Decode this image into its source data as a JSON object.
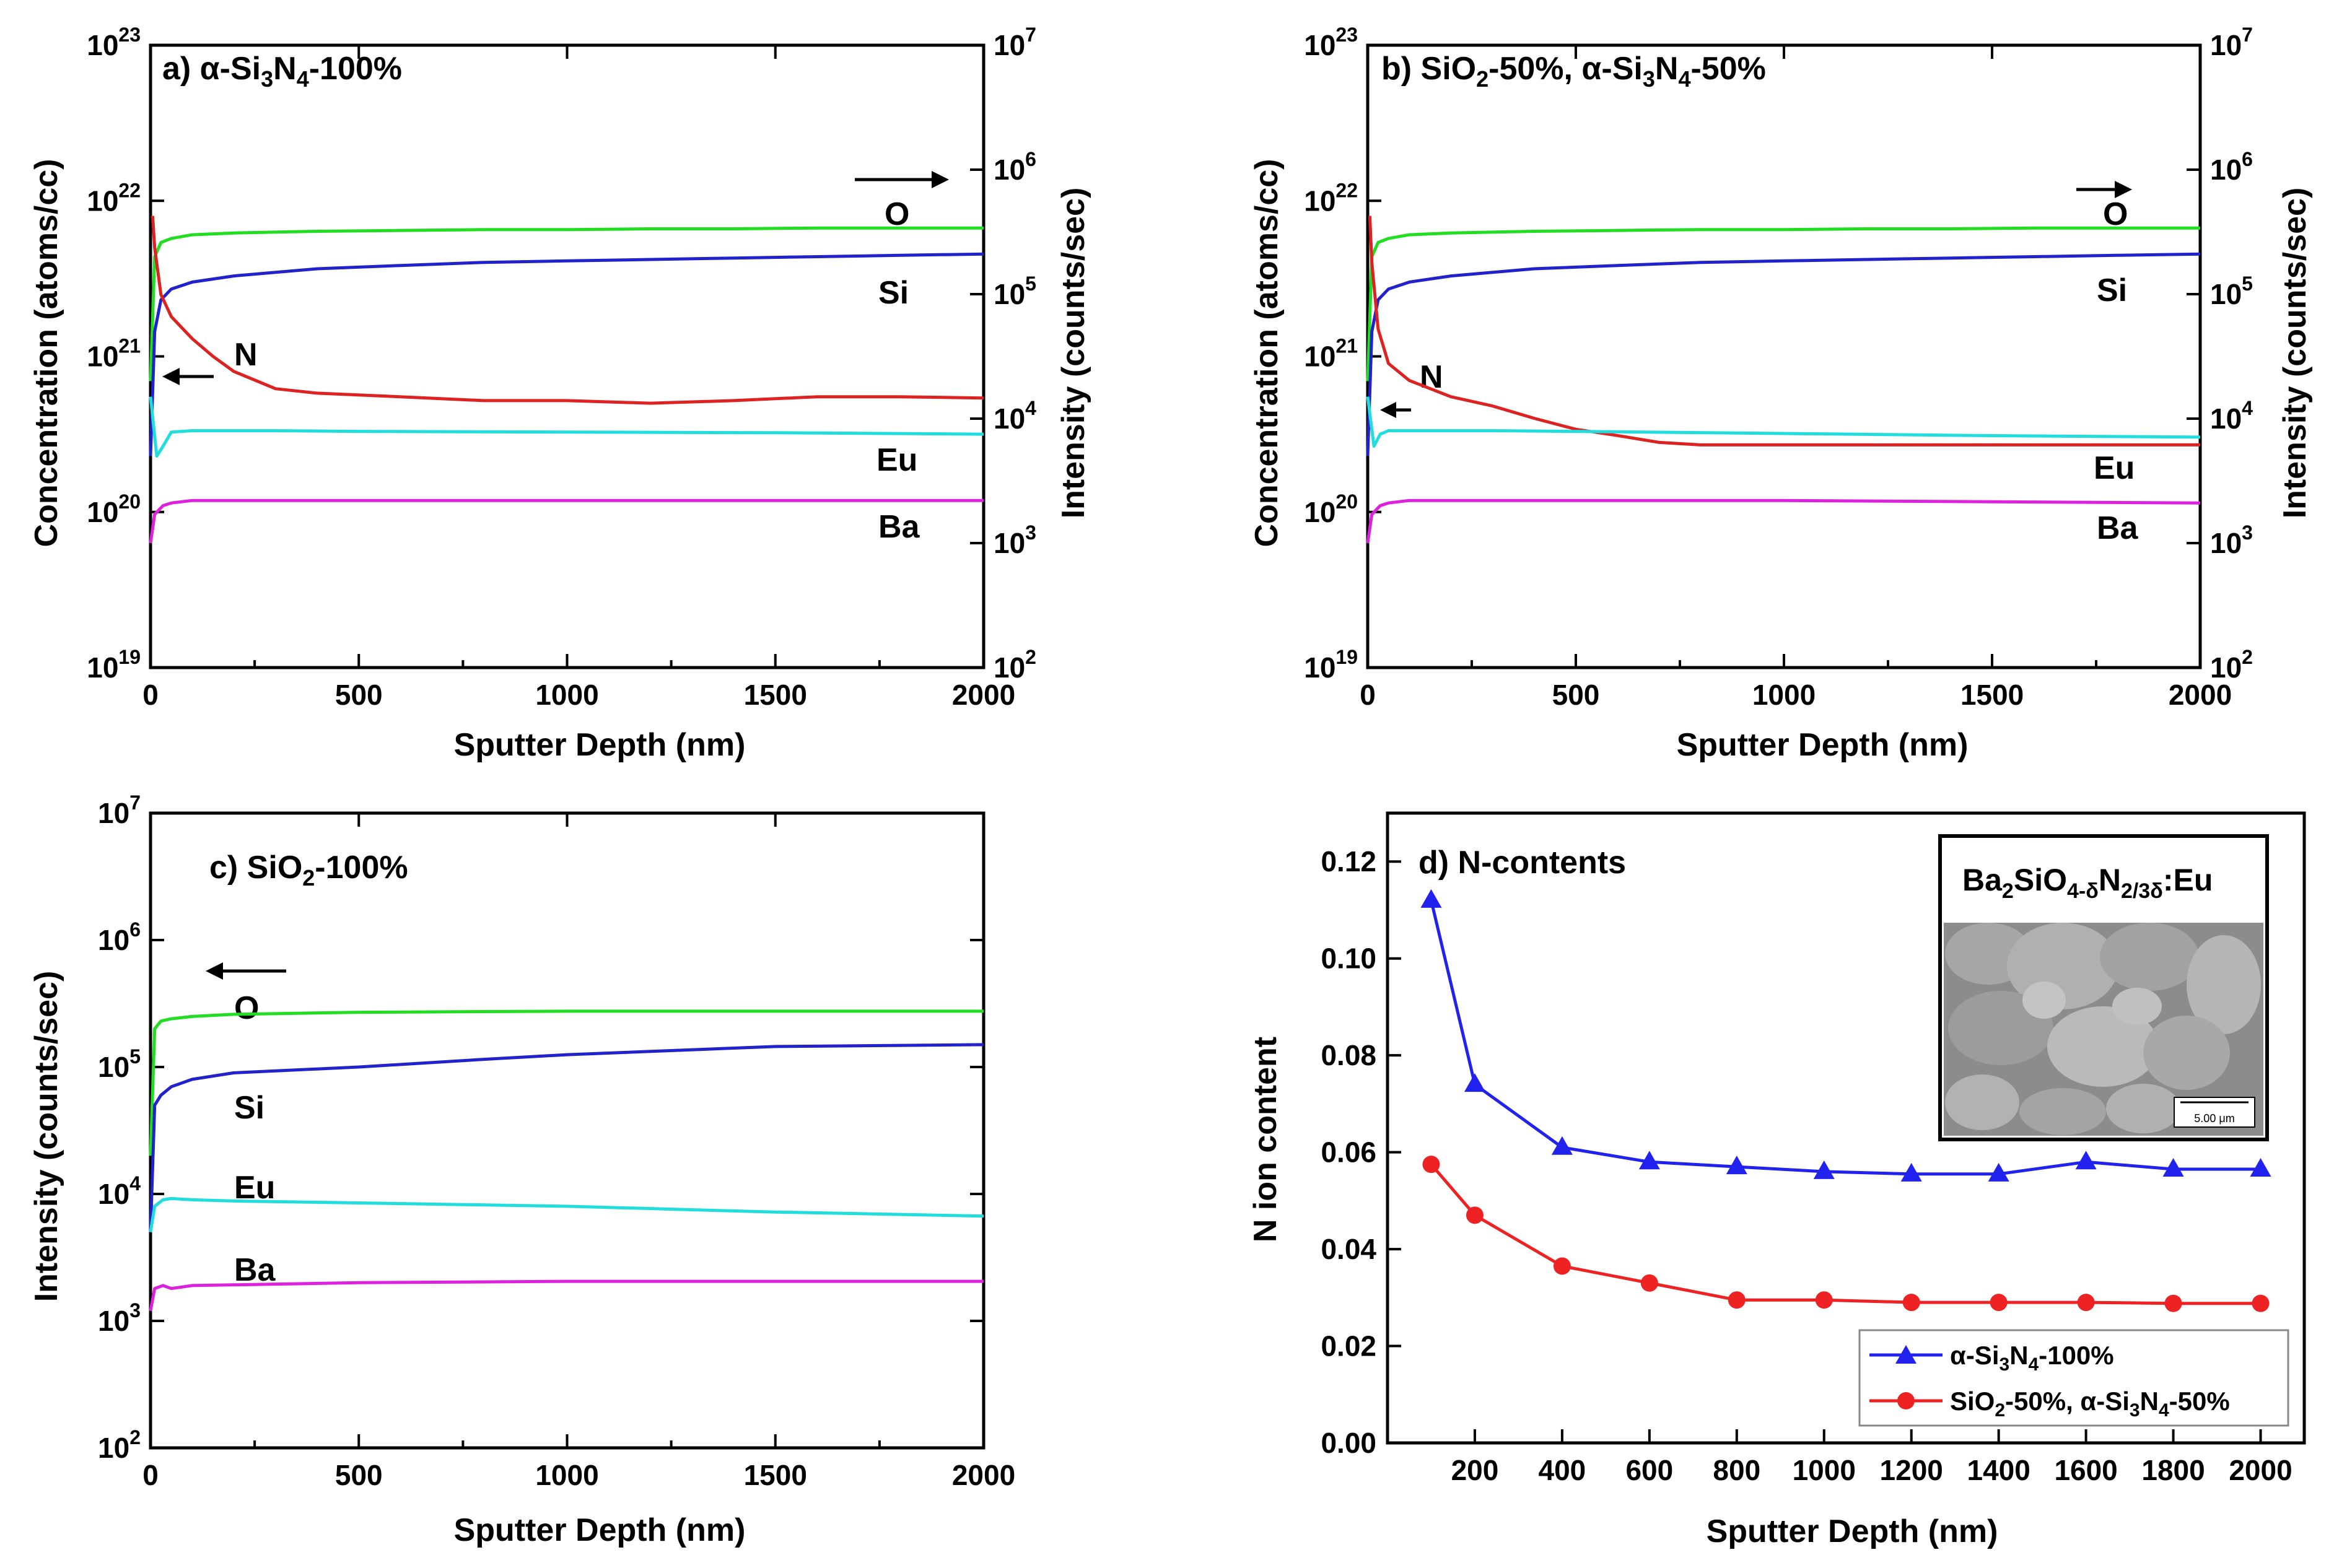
{
  "chart_data": [
    {
      "panel": "a",
      "type": "line",
      "title": "a) α-Si3N4-100%",
      "title_parts": [
        "a) α-Si",
        "3",
        "N",
        "4",
        "-100%"
      ],
      "xlabel": "Sputter Depth (nm)",
      "ylabel_left": "Concentration (atoms/cc)",
      "ylabel_right": "Intensity (counts/sec)",
      "xlim": [
        0,
        2000
      ],
      "xticks": [
        0,
        500,
        1000,
        1500,
        2000
      ],
      "ylim_left": [
        1e+19,
        1e+23
      ],
      "yticks_left": [
        19,
        20,
        21,
        22,
        23
      ],
      "ylim_right": [
        100,
        10000000
      ],
      "yticks_right": [
        2,
        3,
        4,
        5,
        6,
        7
      ],
      "log_base": "10",
      "arrow_left": "N concentration → left axis",
      "arrow_right": "O, Si, Eu, Ba intensities → right axis",
      "series": [
        {
          "name": "O",
          "axis": "right",
          "color": "#22dd22",
          "x": [
            0,
            10,
            25,
            50,
            100,
            200,
            400,
            600,
            800,
            1000,
            1200,
            1400,
            1600,
            1800,
            2000
          ],
          "y": [
            20000,
            200000,
            260000,
            280000,
            300000,
            310000,
            320000,
            325000,
            330000,
            330000,
            335000,
            335000,
            340000,
            340000,
            340000
          ]
        },
        {
          "name": "Si",
          "axis": "right",
          "color": "#2222cc",
          "x": [
            0,
            10,
            25,
            50,
            100,
            200,
            400,
            600,
            800,
            1000,
            1200,
            1400,
            1600,
            1800,
            2000
          ],
          "y": [
            5000,
            50000,
            90000,
            110000,
            125000,
            140000,
            160000,
            170000,
            180000,
            185000,
            190000,
            195000,
            200000,
            205000,
            210000
          ]
        },
        {
          "name": "N",
          "axis": "left",
          "color": "#dd2222",
          "x": [
            5,
            10,
            25,
            50,
            100,
            150,
            200,
            300,
            400,
            600,
            800,
            1000,
            1200,
            1400,
            1600,
            1800,
            2000
          ],
          "y": [
            8e+21,
            5e+21,
            2.5e+21,
            1.8e+21,
            1.3e+21,
            1e+21,
            8e+20,
            6.2e+20,
            5.8e+20,
            5.5e+20,
            5.2e+20,
            5.2e+20,
            5e+20,
            5.2e+20,
            5.5e+20,
            5.5e+20,
            5.4e+20
          ]
        },
        {
          "name": "Eu",
          "axis": "right",
          "color": "#22dddd",
          "x": [
            0,
            15,
            30,
            50,
            100,
            300,
            500,
            1000,
            1500,
            2000
          ],
          "y": [
            15000,
            5000,
            6000,
            7800,
            8000,
            8000,
            7900,
            7800,
            7700,
            7500
          ]
        },
        {
          "name": "Ba",
          "axis": "right",
          "color": "#dd22dd",
          "x": [
            0,
            10,
            30,
            50,
            100,
            500,
            1000,
            1500,
            2000
          ],
          "y": [
            1000,
            1700,
            2000,
            2100,
            2200,
            2200,
            2200,
            2200,
            2200
          ]
        }
      ]
    },
    {
      "panel": "b",
      "type": "line",
      "title": "b) SiO2-50%, α-Si3N4-50%",
      "title_parts": [
        "b) SiO",
        "2",
        "-50%, α-Si",
        "3",
        "N",
        "4",
        "-50%"
      ],
      "xlabel": "Sputter Depth (nm)",
      "ylabel_left": "Concentration (atoms/cc)",
      "ylabel_right": "Intensity (counts/sec)",
      "xlim": [
        0,
        2000
      ],
      "xticks": [
        0,
        500,
        1000,
        1500,
        2000
      ],
      "ylim_left": [
        1e+19,
        1e+23
      ],
      "yticks_left": [
        19,
        20,
        21,
        22,
        23
      ],
      "ylim_right": [
        100,
        10000000
      ],
      "yticks_right": [
        2,
        3,
        4,
        5,
        6,
        7
      ],
      "log_base": "10",
      "arrow_left": "N concentration → left axis",
      "arrow_right": "O, Si, Eu, Ba intensities → right axis",
      "series": [
        {
          "name": "O",
          "axis": "right",
          "color": "#22dd22",
          "x": [
            0,
            10,
            25,
            50,
            100,
            200,
            400,
            600,
            800,
            1000,
            1200,
            1400,
            1600,
            1800,
            2000
          ],
          "y": [
            20000,
            200000,
            260000,
            280000,
            300000,
            310000,
            320000,
            325000,
            330000,
            330000,
            335000,
            335000,
            340000,
            340000,
            340000
          ]
        },
        {
          "name": "Si",
          "axis": "right",
          "color": "#2222cc",
          "x": [
            0,
            10,
            25,
            50,
            100,
            200,
            400,
            600,
            800,
            1000,
            1200,
            1400,
            1600,
            1800,
            2000
          ],
          "y": [
            5000,
            50000,
            90000,
            110000,
            125000,
            140000,
            160000,
            170000,
            180000,
            185000,
            190000,
            195000,
            200000,
            205000,
            210000
          ]
        },
        {
          "name": "N",
          "axis": "left",
          "color": "#dd2222",
          "x": [
            5,
            10,
            25,
            50,
            100,
            200,
            300,
            400,
            500,
            600,
            700,
            800,
            1000,
            1200,
            1400,
            1600,
            1800,
            2000
          ],
          "y": [
            8e+21,
            4e+21,
            1.5e+21,
            9e+20,
            7e+20,
            5.5e+20,
            4.8e+20,
            4e+20,
            3.4e+20,
            3.1e+20,
            2.8e+20,
            2.7e+20,
            2.7e+20,
            2.7e+20,
            2.7e+20,
            2.7e+20,
            2.7e+20,
            2.7e+20
          ]
        },
        {
          "name": "Eu",
          "axis": "right",
          "color": "#22dddd",
          "x": [
            0,
            15,
            30,
            50,
            100,
            300,
            500,
            1000,
            1500,
            2000
          ],
          "y": [
            15000,
            6000,
            7500,
            8000,
            8000,
            8000,
            7900,
            7600,
            7300,
            7100
          ]
        },
        {
          "name": "Ba",
          "axis": "right",
          "color": "#dd22dd",
          "x": [
            0,
            10,
            30,
            50,
            100,
            500,
            1000,
            1500,
            2000
          ],
          "y": [
            1000,
            1700,
            2000,
            2100,
            2200,
            2200,
            2200,
            2150,
            2100
          ]
        }
      ]
    },
    {
      "panel": "c",
      "type": "line",
      "title": "c) SiO2-100%",
      "title_parts": [
        "c) SiO",
        "2",
        "-100%"
      ],
      "xlabel": "Sputter Depth (nm)",
      "ylabel_left": "Intensity (counts/sec)",
      "xlim": [
        0,
        2000
      ],
      "xticks": [
        0,
        500,
        1000,
        1500,
        2000
      ],
      "ylim_left": [
        100,
        10000000
      ],
      "yticks_left": [
        2,
        3,
        4,
        5,
        6,
        7
      ],
      "log_base": "10",
      "arrow_left": "all series → left axis",
      "series": [
        {
          "name": "O",
          "axis": "left",
          "color": "#22dd22",
          "x": [
            0,
            10,
            25,
            50,
            100,
            200,
            500,
            1000,
            1500,
            2000
          ],
          "y": [
            20000,
            200000,
            230000,
            240000,
            250000,
            260000,
            270000,
            275000,
            275000,
            275000
          ]
        },
        {
          "name": "Si",
          "axis": "left",
          "color": "#2222cc",
          "x": [
            0,
            10,
            25,
            50,
            100,
            200,
            500,
            800,
            1000,
            1500,
            2000
          ],
          "y": [
            5000,
            50000,
            60000,
            70000,
            80000,
            90000,
            100000,
            115000,
            125000,
            145000,
            150000
          ]
        },
        {
          "name": "Eu",
          "axis": "left",
          "color": "#22dddd",
          "x": [
            0,
            10,
            30,
            50,
            100,
            200,
            500,
            1000,
            1500,
            2000
          ],
          "y": [
            5000,
            8000,
            9000,
            9200,
            9000,
            8800,
            8500,
            8000,
            7200,
            6700
          ]
        },
        {
          "name": "Ba",
          "axis": "left",
          "color": "#dd22dd",
          "x": [
            0,
            10,
            30,
            50,
            100,
            500,
            1000,
            1500,
            2000
          ],
          "y": [
            1200,
            1800,
            1900,
            1800,
            1900,
            2000,
            2050,
            2050,
            2050
          ]
        }
      ]
    },
    {
      "panel": "d",
      "type": "line",
      "title": "d) N-contents",
      "xlabel": "Sputter Depth (nm)",
      "ylabel": "N ion content",
      "xlim": [
        0,
        2100
      ],
      "xticks": [
        200,
        400,
        600,
        800,
        1000,
        1200,
        1400,
        1600,
        1800,
        2000
      ],
      "ylim": [
        0,
        0.13
      ],
      "yticks": [
        0.0,
        0.02,
        0.04,
        0.06,
        0.08,
        0.1,
        0.12
      ],
      "legend_position": "bottom-right",
      "inset": {
        "title_parts": [
          "Ba",
          "2",
          "SiO",
          "4-δ",
          "N",
          "2/3δ",
          ":Eu"
        ],
        "scale_bar": "5.00 μm",
        "content": "SEM micrograph"
      },
      "series": [
        {
          "name": "α-Si3N4-100%",
          "legend_parts": [
            "α-Si",
            "3",
            "N",
            "4",
            "-100%"
          ],
          "color": "#2222ee",
          "marker": "triangle",
          "x": [
            100,
            200,
            400,
            600,
            800,
            1000,
            1200,
            1400,
            1600,
            1800,
            2000
          ],
          "values": [
            0.112,
            0.074,
            0.061,
            0.058,
            0.057,
            0.056,
            0.0555,
            0.0555,
            0.058,
            0.0565,
            0.0565
          ]
        },
        {
          "name": "SiO2-50%, α-Si3N4-50%",
          "legend_parts": [
            "SiO",
            "2",
            "-50%, α-Si",
            "3",
            "N",
            "4",
            "-50%"
          ],
          "color": "#ee2222",
          "marker": "circle",
          "x": [
            100,
            200,
            400,
            600,
            800,
            1000,
            1200,
            1400,
            1600,
            1800,
            2000
          ],
          "values": [
            0.0575,
            0.047,
            0.0365,
            0.033,
            0.0295,
            0.0295,
            0.029,
            0.029,
            0.029,
            0.0288,
            0.0288
          ]
        }
      ]
    }
  ]
}
